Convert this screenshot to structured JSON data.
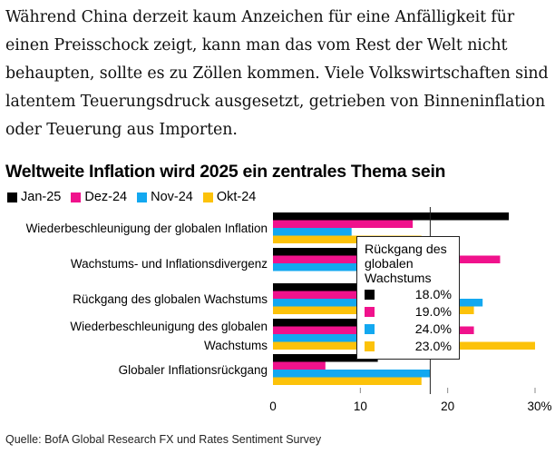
{
  "article": {
    "paragraph": "Während China derzeit kaum Anzeichen für eine Anfälligkeit für einen Preisschock zeigt, kann man das vom Rest der Welt nicht behaupten, sollte es zu Zöllen kommen. Viele Volkswirtschaften sind latentem Teuerungsdruck ausgesetzt, getrieben von Binneninflation oder Teuerung aus Importen."
  },
  "chart_data": {
    "type": "bar",
    "orientation": "horizontal",
    "title": "Weltweite Inflation wird 2025 ein zentrales Thema sein",
    "categories": [
      "Wiederbeschleunigung der globalen Inflation",
      "Wachstums- und Inflationsdivergenz",
      "Rückgang des globalen Wachstums",
      "Wiederbeschleunigung des globalen Wachstums",
      "Globaler Inflationsrückgang"
    ],
    "series": [
      {
        "name": "Jan-25",
        "color": "#000000",
        "values": [
          27,
          15,
          18,
          14,
          12
        ]
      },
      {
        "name": "Dez-24",
        "color": "#f0128c",
        "values": [
          16,
          26,
          19,
          23,
          6
        ]
      },
      {
        "name": "Nov-24",
        "color": "#13a8f0",
        "values": [
          9,
          12,
          24,
          15,
          18
        ]
      },
      {
        "name": "Okt-24",
        "color": "#fcc20a",
        "values": [
          17,
          0,
          23,
          30,
          17
        ]
      }
    ],
    "xlim": [
      0,
      30
    ],
    "xticks": [
      "0",
      "10",
      "20",
      "30%"
    ],
    "legend": "top-left",
    "grid": false,
    "tooltip": {
      "title": "Rückgang des globalen Wachstums",
      "values": [
        "18.0%",
        "19.0%",
        "24.0%",
        "23.0%"
      ],
      "crosshair_value": 18
    },
    "source": "Quelle: BofA Global Research FX und Rates Sentiment Survey"
  }
}
